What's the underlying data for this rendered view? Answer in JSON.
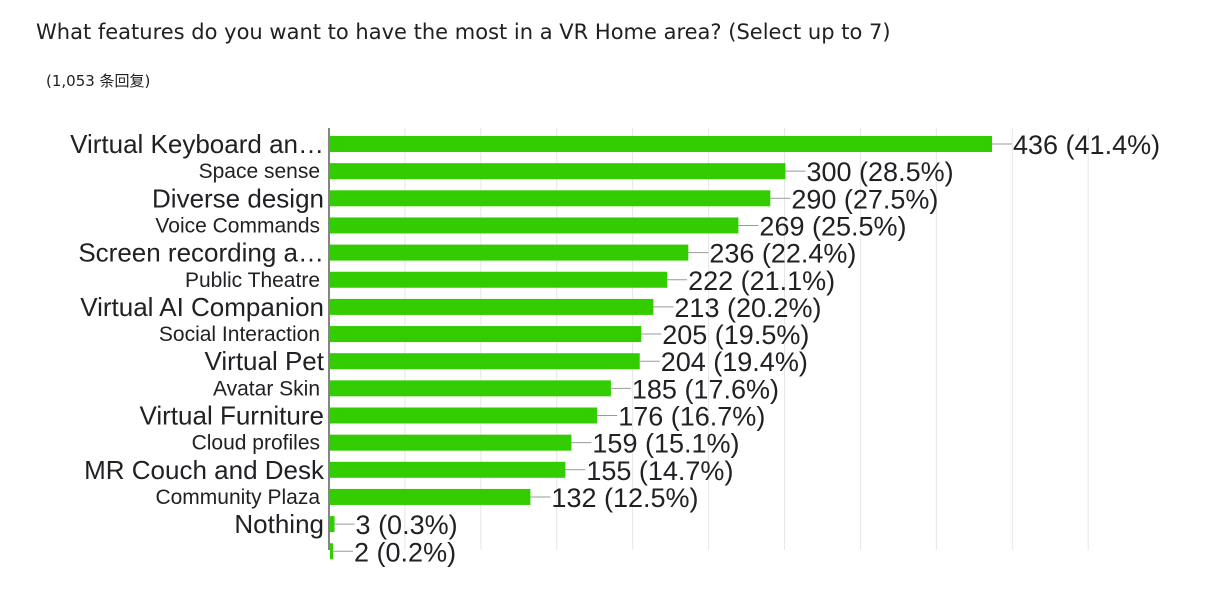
{
  "question": {
    "title": "What features do you want to have the most in a VR Home area? (Select up to 7)",
    "responses": "(1,053 条回复)"
  },
  "colors": {
    "bar": "#33cc00",
    "grid": "#e6e6e6",
    "axis": "#333333",
    "leader": "#999999"
  },
  "chart_data": {
    "type": "bar",
    "orientation": "horizontal",
    "categories": [
      "Virtual Keyboard an…",
      "Space sense",
      "Diverse design",
      "Voice Commands",
      "Screen recording a…",
      "Public Theatre",
      "Virtual AI Companion",
      "Social Interaction",
      "Virtual Pet",
      "Avatar Skin",
      "Virtual Furniture",
      "Cloud profiles",
      "MR Couch and Desk",
      "Community Plaza",
      "Nothing",
      ""
    ],
    "values": [
      436,
      300,
      290,
      269,
      236,
      222,
      213,
      205,
      204,
      185,
      176,
      159,
      155,
      132,
      3,
      2
    ],
    "value_labels": [
      "436 (41.4%)",
      "300 (28.5%)",
      "290 (27.5%)",
      "269 (25.5%)",
      "236 (22.4%)",
      "222 (21.1%)",
      "213 (20.2%)",
      "205 (19.5%)",
      "204 (19.4%)",
      "185 (17.6%)",
      "176 (16.7%)",
      "159 (15.1%)",
      "155 (14.7%)",
      "132 (12.5%)",
      "3 (0.3%)",
      "2 (0.2%)"
    ],
    "label_sizes": [
      "large",
      "small",
      "large",
      "small",
      "large",
      "small",
      "large",
      "small",
      "large",
      "small",
      "large",
      "small",
      "large",
      "small",
      "large",
      "small"
    ],
    "xlim": [
      0,
      500
    ],
    "grid": true,
    "legend": "none"
  }
}
